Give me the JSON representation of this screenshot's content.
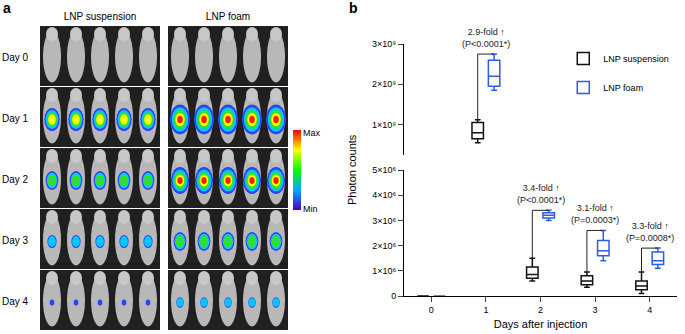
{
  "panel_a": {
    "panel_label": "a",
    "groups": [
      "LNP suspension",
      "LNP foam"
    ],
    "rows": [
      "Day 0",
      "Day 1",
      "Day 2",
      "Day 3",
      "Day 4"
    ],
    "scale_max": "Max",
    "scale_min": "Min"
  },
  "chart_data": {
    "type": "box",
    "panel_label": "b",
    "x_label": "Days after injection",
    "y_label": "Photon counts",
    "x": [
      0,
      1,
      2,
      3,
      4
    ],
    "xlim": [
      -0.5,
      4.5
    ],
    "xticks": [
      0,
      1,
      2,
      3,
      4
    ],
    "ylim": [
      0,
      5000000
    ],
    "yticks": [
      0,
      {
        "value": 1000000,
        "label": "1×10⁶"
      },
      {
        "value": 2000000,
        "label": "2×10⁶"
      },
      {
        "value": 3000000,
        "label": "3×10⁶"
      },
      {
        "value": 4000000,
        "label": "4×10⁶"
      },
      {
        "value": 5000000,
        "label": "5×10⁶"
      }
    ],
    "y2lim": [
      250000000,
      3000000000
    ],
    "y2ticks": [
      {
        "value": 1000000000,
        "label": "1×10⁹"
      },
      {
        "value": 2000000000,
        "label": "2×10⁹"
      },
      {
        "value": 3000000000,
        "label": "3×10⁹"
      }
    ],
    "legend": "upper right",
    "series": [
      {
        "name": "LNP suspension",
        "color": "#111111",
        "min": [
          0,
          550000000,
          600000,
          350000,
          100000
        ],
        "q1": [
          0,
          650000000,
          700000,
          450000,
          250000
        ],
        "median": [
          0,
          800000000,
          850000,
          600000,
          400000
        ],
        "q3": [
          0,
          1050000000,
          1150000,
          800000,
          600000
        ],
        "max": [
          0,
          1120000000,
          1500000,
          950000,
          950000
        ]
      },
      {
        "name": "LNP foam",
        "color": "#2a5ee8",
        "min": [
          0,
          1850000000,
          3000000,
          1400000,
          1100000
        ],
        "q1": [
          0,
          1950000000,
          3100000,
          1600000,
          1250000
        ],
        "median": [
          0,
          2200000000,
          3200000,
          1800000,
          1400000
        ],
        "q3": [
          0,
          2600000000,
          3300000,
          2200000,
          1750000
        ],
        "max": [
          0,
          2750000000,
          3400000,
          2600000,
          1900000
        ]
      }
    ],
    "annotations": [
      {
        "x": 1,
        "lines": [
          "2.9-fold ↑",
          "(P<0.0001*)"
        ]
      },
      {
        "x": 2,
        "lines": [
          "3.4-fold ↑",
          "(P<0.0001*)"
        ]
      },
      {
        "x": 3,
        "lines": [
          "3.1-fold ↑",
          "(P=0.0003*)"
        ]
      },
      {
        "x": 4,
        "lines": [
          "3.3-fold ↑",
          "(P=0.0008*)"
        ]
      }
    ]
  }
}
